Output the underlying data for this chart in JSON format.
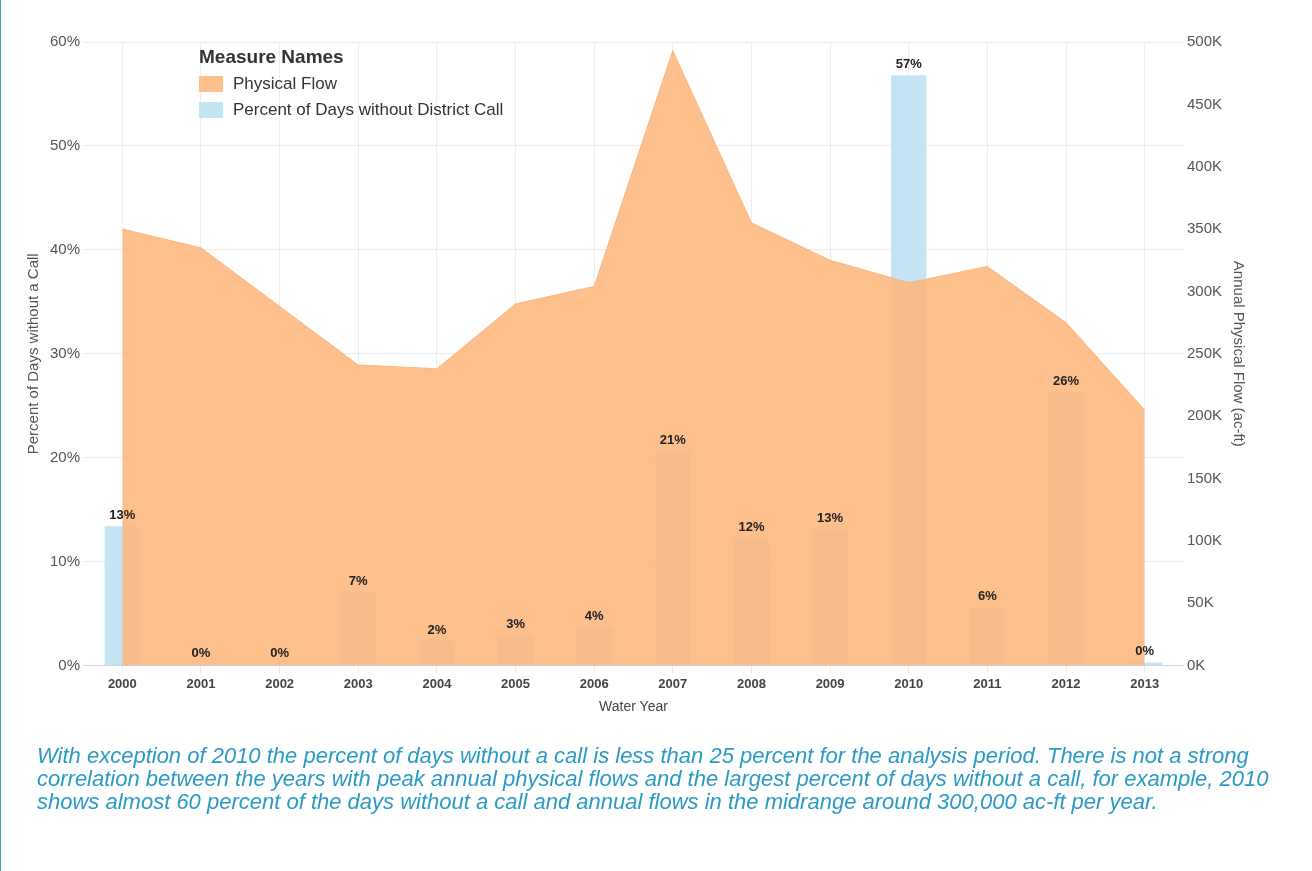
{
  "chart_data": {
    "type": "bar",
    "categories": [
      "2000",
      "2001",
      "2002",
      "2003",
      "2004",
      "2005",
      "2006",
      "2007",
      "2008",
      "2009",
      "2010",
      "2011",
      "2012",
      "2013"
    ],
    "xlabel": "Water Year",
    "ylabel": "Percent of Days without a Call",
    "y2label": "Annual Physical Flow (ac-ft)",
    "legend_title": "Measure Names",
    "series": [
      {
        "name": "Physical Flow",
        "type": "area",
        "axis": "y2",
        "color": "#fdb67c",
        "values": [
          350000,
          335000,
          288000,
          241000,
          238000,
          290000,
          304000,
          493000,
          355000,
          325000,
          307000,
          320000,
          275000,
          205000
        ]
      },
      {
        "name": "Percent of Days without District Call",
        "color": "#c3e4f3",
        "values": [
          13.4,
          0.2,
          0.2,
          7.1,
          2.4,
          2.9,
          3.7,
          20.6,
          12.3,
          13.1,
          56.8,
          5.6,
          26.3,
          0.3
        ],
        "value_labels": [
          "13%",
          "0%",
          "0%",
          "7%",
          "2%",
          "3%",
          "4%",
          "21%",
          "12%",
          "13%",
          "57%",
          "6%",
          "26%",
          "0%"
        ]
      }
    ],
    "ylim": [
      0,
      60
    ],
    "yticks": [
      {
        "value": 0,
        "label": "0%"
      },
      {
        "value": 10,
        "label": "10%"
      },
      {
        "value": 20,
        "label": "20%"
      },
      {
        "value": 30,
        "label": "30%"
      },
      {
        "value": 40,
        "label": "40%"
      },
      {
        "value": 50,
        "label": "50%"
      },
      {
        "value": 60,
        "label": "60%"
      }
    ],
    "y2lim": [
      0,
      500000
    ],
    "y2ticks": [
      {
        "value": 0,
        "label": "0K"
      },
      {
        "value": 50000,
        "label": "50K"
      },
      {
        "value": 100000,
        "label": "100K"
      },
      {
        "value": 150000,
        "label": "150K"
      },
      {
        "value": 200000,
        "label": "200K"
      },
      {
        "value": 250000,
        "label": "250K"
      },
      {
        "value": 300000,
        "label": "300K"
      },
      {
        "value": 350000,
        "label": "350K"
      },
      {
        "value": 400000,
        "label": "400K"
      },
      {
        "value": 450000,
        "label": "450K"
      },
      {
        "value": 500000,
        "label": "500K"
      }
    ],
    "grid": true,
    "legend": "top left",
    "annotations": [
      "With exception of 2010 the percent of days without a call is less than 25 percent for the analysis period. There is not a strong correlation between the years with peak annual physical flows and the largest percent of days without a call, for example, 2010 shows almost 60 percent of the days without a call and annual flows in the midrange around 300,000 ac-ft per year."
    ]
  }
}
